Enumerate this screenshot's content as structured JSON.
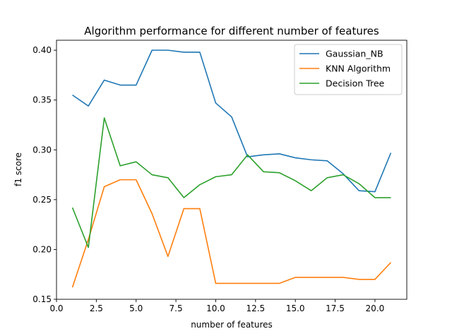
{
  "chart_data": {
    "type": "line",
    "title": "Algorithm performance for different number of features",
    "xlabel": "number of features",
    "ylabel": "f1 score",
    "xlim": [
      0,
      22
    ],
    "ylim": [
      0.15,
      0.41
    ],
    "xticks": [
      0.0,
      2.5,
      5.0,
      7.5,
      10.0,
      12.5,
      15.0,
      17.5,
      20.0
    ],
    "xtick_labels": [
      "0.0",
      "2.5",
      "5.0",
      "7.5",
      "10.0",
      "12.5",
      "15.0",
      "17.5",
      "20.0"
    ],
    "yticks": [
      0.15,
      0.2,
      0.25,
      0.3,
      0.35,
      0.4
    ],
    "ytick_labels": [
      "0.15",
      "0.20",
      "0.25",
      "0.30",
      "0.35",
      "0.40"
    ],
    "grid": false,
    "legend_position": "top-right",
    "x": [
      1,
      2,
      3,
      4,
      5,
      6,
      7,
      8,
      9,
      10,
      11,
      12,
      13,
      14,
      15,
      16,
      17,
      18,
      19,
      20,
      21
    ],
    "series": [
      {
        "name": "Gaussian_NB",
        "color": "#1f77b4",
        "values": [
          0.355,
          0.344,
          0.37,
          0.365,
          0.365,
          0.4,
          0.4,
          0.398,
          0.398,
          0.347,
          0.333,
          0.293,
          0.295,
          0.296,
          0.292,
          0.29,
          0.289,
          0.276,
          0.259,
          0.258,
          0.297
        ]
      },
      {
        "name": "KNN Algorithm",
        "color": "#ff7f0e",
        "values": [
          0.162,
          0.21,
          0.263,
          0.27,
          0.27,
          0.236,
          0.193,
          0.241,
          0.241,
          0.166,
          0.166,
          0.166,
          0.166,
          0.166,
          0.172,
          0.172,
          0.172,
          0.172,
          0.17,
          0.17,
          0.187
        ]
      },
      {
        "name": "Decision Tree",
        "color": "#2ca02c",
        "values": [
          0.242,
          0.202,
          0.332,
          0.284,
          0.288,
          0.275,
          0.272,
          0.252,
          0.265,
          0.273,
          0.275,
          0.295,
          0.278,
          0.277,
          0.269,
          0.259,
          0.272,
          0.275,
          0.266,
          0.252,
          0.252
        ]
      }
    ]
  }
}
